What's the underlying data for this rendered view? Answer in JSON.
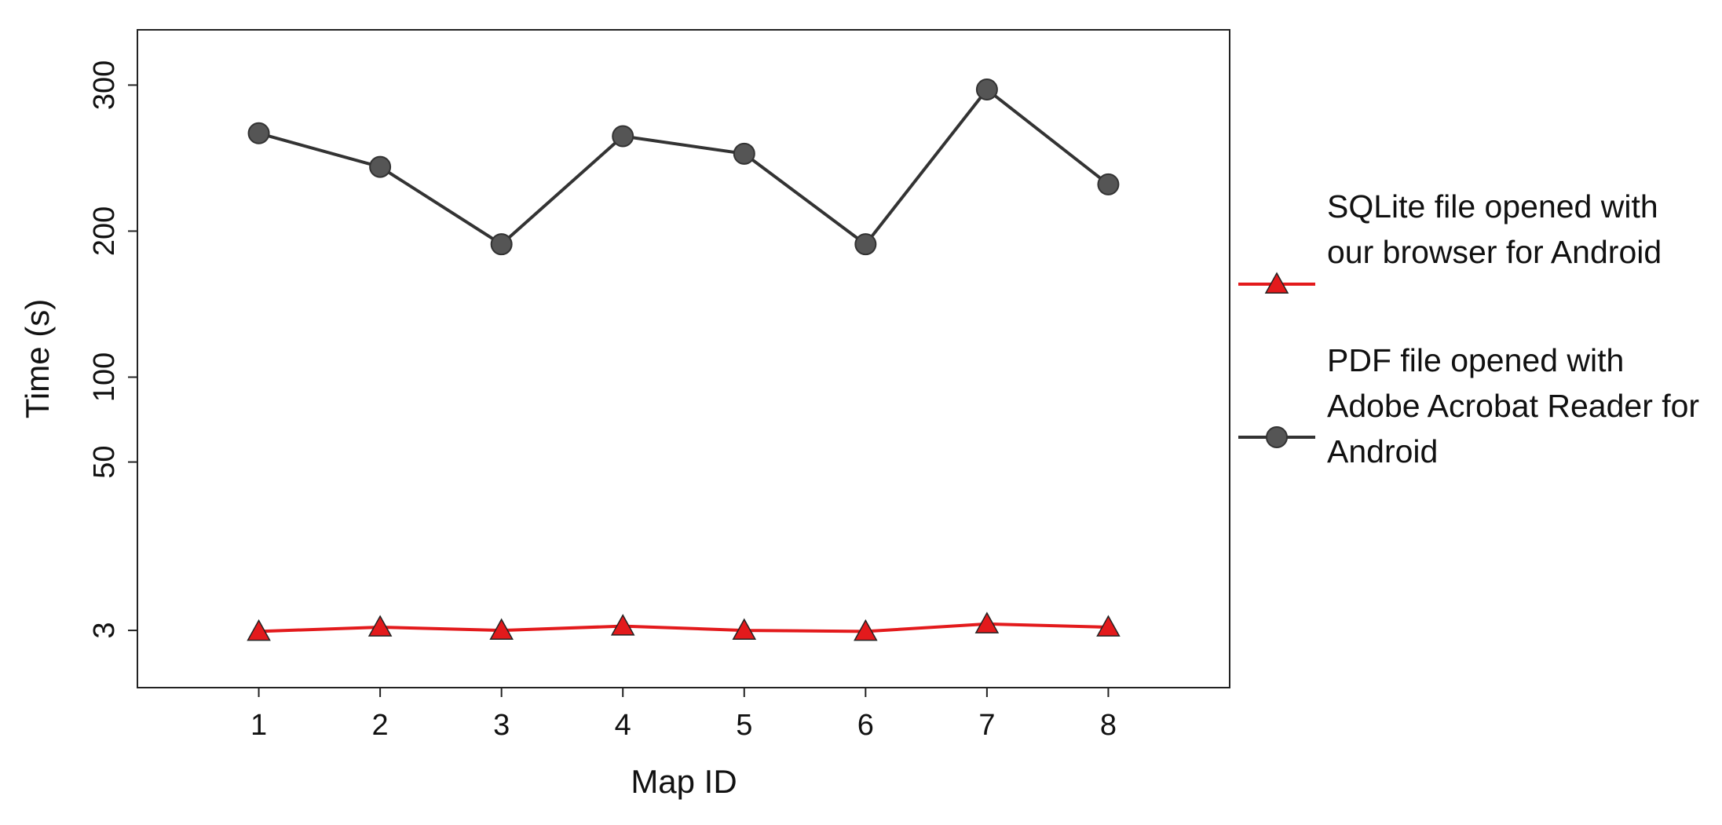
{
  "chart_data": {
    "type": "line",
    "x_label": "Map ID",
    "y_label": "Time (s)",
    "x": [
      1,
      2,
      3,
      4,
      5,
      6,
      7,
      8
    ],
    "xlim": [
      0,
      9
    ],
    "xticks": [
      1,
      2,
      3,
      4,
      5,
      6,
      7,
      8
    ],
    "ylim": [
      -14,
      338
    ],
    "yticks": [
      3,
      50,
      100,
      200,
      300
    ],
    "series": [
      {
        "name": "SQLite file opened with our browser for Android",
        "color": "#e31a1c",
        "marker": "triangle",
        "values": [
          2.7,
          3.9,
          3.0,
          4.2,
          3.0,
          2.7,
          4.8,
          3.9
        ]
      },
      {
        "name": "PDF file opened with Adobe Acrobat Reader for Android",
        "color": "#333333",
        "marker": "circle",
        "values": [
          267,
          244,
          191,
          265,
          253,
          191,
          297,
          232
        ]
      }
    ]
  }
}
